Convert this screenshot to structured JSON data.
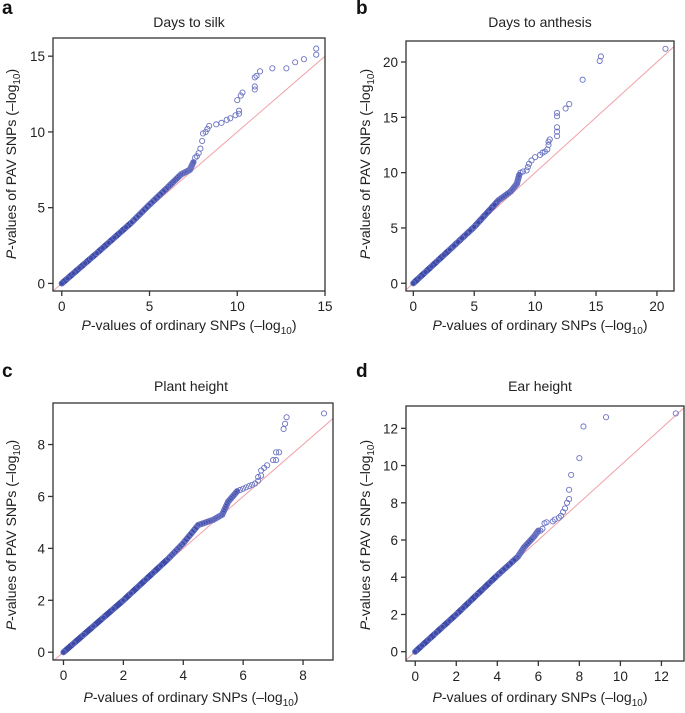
{
  "chart_data": [
    {
      "id": "a",
      "type": "scatter",
      "panel_letter": "a",
      "title": "Days to silk",
      "xlabel": "P-values of ordinary SNPs (–log10)",
      "ylabel": "P-values of PAV SNPs (–log10)",
      "xlim": [
        -0.5,
        15
      ],
      "ylim": [
        -0.5,
        16.2
      ],
      "xticks": [
        0,
        5,
        10,
        15
      ],
      "yticks": [
        0,
        5,
        10,
        15
      ],
      "reference_line": "y = x",
      "dense_curve": [
        [
          0,
          0
        ],
        [
          2,
          2
        ],
        [
          4,
          4.05
        ],
        [
          5,
          5.2
        ],
        [
          6,
          6.3
        ],
        [
          6.8,
          7.2
        ],
        [
          7.3,
          7.5
        ],
        [
          7.5,
          8.0
        ]
      ],
      "points": [
        [
          7.6,
          8.3
        ],
        [
          7.7,
          8.4
        ],
        [
          7.8,
          8.6
        ],
        [
          7.9,
          8.9
        ],
        [
          8.0,
          9.4
        ],
        [
          8.05,
          9.9
        ],
        [
          8.2,
          10.0
        ],
        [
          8.3,
          10.2
        ],
        [
          8.4,
          10.4
        ],
        [
          8.8,
          10.5
        ],
        [
          9.1,
          10.6
        ],
        [
          9.4,
          10.8
        ],
        [
          9.6,
          10.9
        ],
        [
          9.9,
          11.1
        ],
        [
          10.1,
          11.2
        ],
        [
          10.1,
          11.4
        ],
        [
          10.0,
          12.1
        ],
        [
          10.2,
          12.4
        ],
        [
          10.3,
          12.6
        ],
        [
          11.0,
          12.8
        ],
        [
          11.0,
          13.0
        ],
        [
          11.0,
          13.6
        ],
        [
          11.1,
          13.7
        ],
        [
          11.3,
          14.0
        ],
        [
          12.0,
          14.2
        ],
        [
          12.8,
          14.2
        ],
        [
          13.3,
          14.6
        ],
        [
          13.8,
          14.8
        ],
        [
          14.5,
          15.1
        ],
        [
          14.5,
          15.5
        ]
      ]
    },
    {
      "id": "b",
      "type": "scatter",
      "panel_letter": "b",
      "title": "Days to anthesis",
      "xlabel": "P-values of ordinary SNPs (–log10)",
      "ylabel": "P-values of PAV SNPs (–log10)",
      "xlim": [
        -0.6,
        21.4
      ],
      "ylim": [
        -0.7,
        21.9
      ],
      "xticks": [
        0,
        5,
        10,
        15,
        20
      ],
      "yticks": [
        0,
        5,
        10,
        15,
        20
      ],
      "reference_line": "y = x",
      "dense_curve": [
        [
          0,
          0
        ],
        [
          3,
          3.05
        ],
        [
          5,
          5.1
        ],
        [
          7,
          7.5
        ],
        [
          8,
          8.3
        ],
        [
          8.5,
          9.0
        ],
        [
          8.7,
          9.8
        ]
      ],
      "points": [
        [
          8.8,
          10.0
        ],
        [
          9.0,
          10.1
        ],
        [
          9.3,
          10.2
        ],
        [
          9.4,
          10.5
        ],
        [
          9.5,
          10.8
        ],
        [
          9.7,
          11.1
        ],
        [
          10.0,
          11.4
        ],
        [
          10.4,
          11.6
        ],
        [
          10.6,
          11.8
        ],
        [
          10.8,
          11.9
        ],
        [
          11.0,
          12.1
        ],
        [
          11.1,
          12.5
        ],
        [
          11.1,
          12.8
        ],
        [
          11.2,
          13.0
        ],
        [
          11.8,
          13.3
        ],
        [
          11.8,
          13.7
        ],
        [
          11.8,
          14.1
        ],
        [
          11.8,
          15.1
        ],
        [
          11.8,
          15.4
        ],
        [
          12.5,
          15.8
        ],
        [
          12.8,
          16.2
        ],
        [
          13.9,
          18.4
        ],
        [
          15.3,
          20.1
        ],
        [
          15.4,
          20.5
        ],
        [
          20.7,
          21.2
        ]
      ]
    },
    {
      "id": "c",
      "type": "scatter",
      "panel_letter": "c",
      "title": "Plant height",
      "xlabel": "P-values of ordinary SNPs (–log10)",
      "ylabel": "P-values of PAV SNPs (–log10)",
      "xlim": [
        -0.35,
        9.0
      ],
      "ylim": [
        -0.3,
        9.6
      ],
      "xticks": [
        0,
        2,
        4,
        6,
        8
      ],
      "yticks": [
        0,
        2,
        4,
        6,
        8
      ],
      "reference_line": "y = x",
      "dense_curve": [
        [
          0,
          0
        ],
        [
          2,
          2
        ],
        [
          3.5,
          3.6
        ],
        [
          4,
          4.2
        ],
        [
          4.5,
          4.9
        ],
        [
          5,
          5.1
        ],
        [
          5.3,
          5.3
        ],
        [
          5.5,
          5.8
        ],
        [
          5.8,
          6.2
        ]
      ],
      "points": [
        [
          5.9,
          6.25
        ],
        [
          6.0,
          6.3
        ],
        [
          6.1,
          6.35
        ],
        [
          6.2,
          6.4
        ],
        [
          6.3,
          6.45
        ],
        [
          6.4,
          6.5
        ],
        [
          6.5,
          6.6
        ],
        [
          6.5,
          6.75
        ],
        [
          6.6,
          6.8
        ],
        [
          6.6,
          7.0
        ],
        [
          6.7,
          7.1
        ],
        [
          6.8,
          7.2
        ],
        [
          7.0,
          7.4
        ],
        [
          7.1,
          7.4
        ],
        [
          7.1,
          7.7
        ],
        [
          7.2,
          7.7
        ],
        [
          7.35,
          8.6
        ],
        [
          7.4,
          8.8
        ],
        [
          7.45,
          9.05
        ],
        [
          8.7,
          9.2
        ]
      ]
    },
    {
      "id": "d",
      "type": "scatter",
      "panel_letter": "d",
      "title": "Ear height",
      "xlabel": "P-values of ordinary SNPs (–log10)",
      "ylabel": "P-values of PAV SNPs (–log10)",
      "xlim": [
        -0.45,
        13.1
      ],
      "ylim": [
        -0.5,
        13.2
      ],
      "xticks": [
        0,
        2,
        4,
        6,
        8,
        10,
        12
      ],
      "yticks": [
        0,
        2,
        4,
        6,
        8,
        10,
        12
      ],
      "reference_line": "y = x",
      "dense_curve": [
        [
          0,
          0
        ],
        [
          2,
          2
        ],
        [
          4,
          4.1
        ],
        [
          5,
          5.1
        ],
        [
          5.3,
          5.6
        ],
        [
          5.8,
          6.2
        ],
        [
          6.0,
          6.5
        ]
      ],
      "points": [
        [
          6.1,
          6.5
        ],
        [
          6.2,
          6.6
        ],
        [
          6.3,
          6.9
        ],
        [
          6.4,
          6.95
        ],
        [
          6.7,
          7.0
        ],
        [
          6.8,
          7.1
        ],
        [
          7.0,
          7.2
        ],
        [
          7.1,
          7.3
        ],
        [
          7.2,
          7.5
        ],
        [
          7.3,
          7.7
        ],
        [
          7.4,
          8.0
        ],
        [
          7.5,
          8.2
        ],
        [
          7.5,
          8.7
        ],
        [
          7.6,
          9.5
        ],
        [
          8.0,
          10.4
        ],
        [
          8.2,
          12.1
        ],
        [
          9.3,
          12.6
        ],
        [
          12.7,
          12.8
        ]
      ]
    }
  ]
}
